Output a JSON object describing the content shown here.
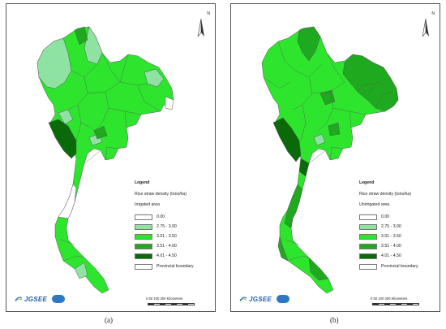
{
  "panels": [
    {
      "id": "a",
      "caption": "(a)",
      "north_label": "N",
      "legend": {
        "title": "Legend",
        "subtitle": "Rice straw density (tons/ha)",
        "area_label": "Irrigated area",
        "classes": [
          {
            "label": "0.00",
            "color": "#ffffff"
          },
          {
            "label": "2.75 - 3.00",
            "color": "#8ee3a3"
          },
          {
            "label": "3.01 - 3.50",
            "color": "#2ee52e"
          },
          {
            "label": "3.51 - 4.00",
            "color": "#1fa91f"
          },
          {
            "label": "4.01 - 4.50",
            "color": "#0a6a0a"
          }
        ],
        "boundary_label": "Provincial boundary"
      },
      "logo": {
        "name": "JGSEE"
      },
      "scale": {
        "ticks": "0   50  100        200 Kilometers"
      }
    },
    {
      "id": "b",
      "caption": "(b)",
      "north_label": "N",
      "legend": {
        "title": "Legend",
        "subtitle": "Rice straw density (tons/ha)",
        "area_label": "Unirrigated area",
        "classes": [
          {
            "label": "0.00",
            "color": "#ffffff"
          },
          {
            "label": "2.75 - 3.00",
            "color": "#8ee3a3"
          },
          {
            "label": "3.01 - 3.50",
            "color": "#2ee52e"
          },
          {
            "label": "3.51 - 4.00",
            "color": "#1fa91f"
          },
          {
            "label": "4.01 - 4.50",
            "color": "#0a6a0a"
          }
        ],
        "boundary_label": "Provincial boundary"
      },
      "logo": {
        "name": "JGSEE"
      },
      "scale": {
        "ticks": "0   50  100        200 Kilometers"
      }
    }
  ],
  "colors": {
    "base": "#2ee52e",
    "light": "#8ee3a3",
    "medium": "#1fa91f",
    "dark": "#0a6a0a",
    "boundary": "#555555"
  }
}
